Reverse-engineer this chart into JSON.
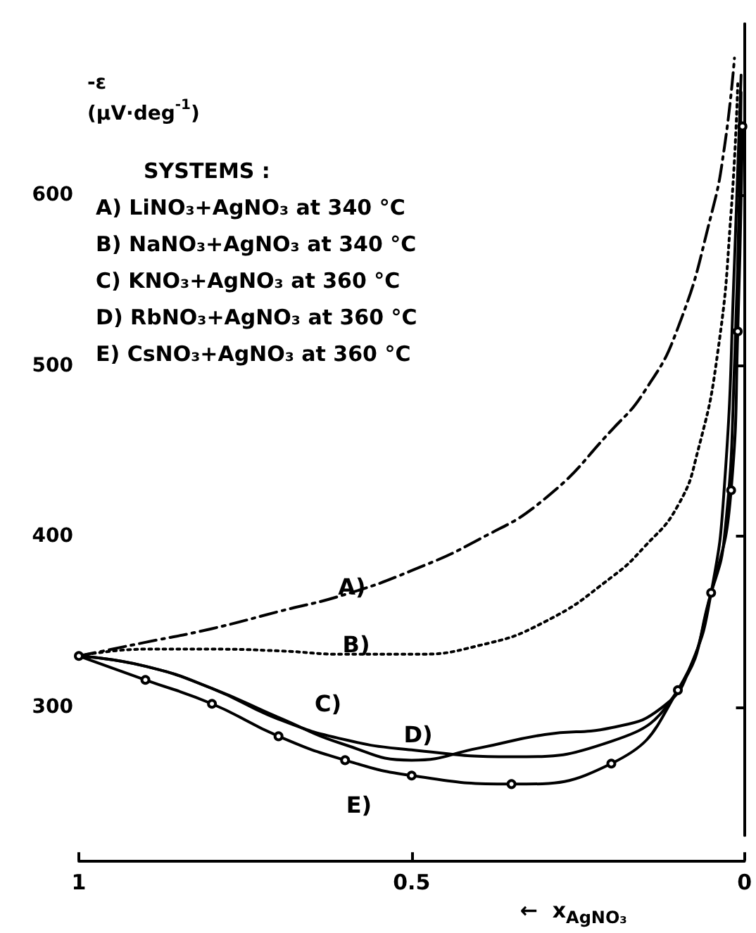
{
  "chart_data": {
    "type": "line",
    "ylabel": "-ε\n(μV·deg$^{-1}$)",
    "xlabel": "←  x$_{AgNO₃}$",
    "xlim": [
      1,
      0
    ],
    "xticks": [
      1,
      0.5,
      0
    ],
    "ylim": [
      225,
      700
    ],
    "yticks": [
      300,
      400,
      500,
      600
    ],
    "grid": false,
    "marker": "none",
    "series": [
      {
        "color": "#000000",
        "line_style": "dashed",
        "x": [
          1,
          0.9,
          0.8,
          0.7,
          0.6,
          0.5,
          0.4,
          0.3,
          0.2,
          0.15,
          0.1,
          0.05,
          0.03,
          0.015
        ],
        "values": [
          330,
          338,
          346,
          356,
          366,
          380,
          398,
          422,
          462,
          485,
          522,
          588,
          628,
          680
        ]
      },
      {
        "color": "#000000",
        "line_style": "dotted",
        "x": [
          1,
          0.9,
          0.8,
          0.7,
          0.6,
          0.5,
          0.4,
          0.3,
          0.2,
          0.15,
          0.1,
          0.07,
          0.04,
          0.02,
          0.01
        ],
        "values": [
          330,
          334,
          334,
          333,
          331,
          331,
          336,
          350,
          376,
          394,
          418,
          450,
          508,
          590,
          665
        ]
      },
      {
        "color": "#000000",
        "line_style": "solid",
        "x": [
          1,
          0.9,
          0.8,
          0.7,
          0.6,
          0.5,
          0.4,
          0.3,
          0.2,
          0.12,
          0.08,
          0.05,
          0.03,
          0.015,
          0.005
        ],
        "values": [
          330,
          324,
          311,
          294,
          278,
          269,
          276,
          284,
          288,
          301,
          325,
          367,
          430,
          560,
          670
        ]
      },
      {
        "color": "#000000",
        "line_style": "solid",
        "x": [
          1,
          0.9,
          0.8,
          0.7,
          0.6,
          0.5,
          0.35,
          0.2,
          0.1,
          0.05,
          0.03,
          0.015,
          0.005
        ],
        "values": [
          330,
          324,
          311,
          293,
          281,
          275,
          271,
          280,
          310,
          367,
          400,
          500,
          660
        ]
      },
      {
        "color": "#000000",
        "line_style": "solid",
        "marker": "circle",
        "x": [
          1,
          0.9,
          0.8,
          0.7,
          0.6,
          0.5,
          0.35,
          0.2,
          0.1,
          0.05,
          0.02,
          0.01,
          0.003
        ],
        "values": [
          330,
          316,
          302,
          283,
          269,
          260,
          255,
          267,
          310,
          367,
          427,
          520,
          640
        ]
      }
    ],
    "annotations": [
      "SYSTEMS :",
      "A) LiNO₃+AgNO₃ at 340 °C",
      "B) NaNO₃+AgNO₃ at 340 °C",
      "C) KNO₃+AgNO₃ at 360 °C",
      "D) RbNO₃+AgNO₃ at 360 °C",
      "E) CsNO₃+AgNO₃ at 360 °C",
      "A)",
      "B)",
      "C)",
      "D)",
      "E)"
    ]
  }
}
